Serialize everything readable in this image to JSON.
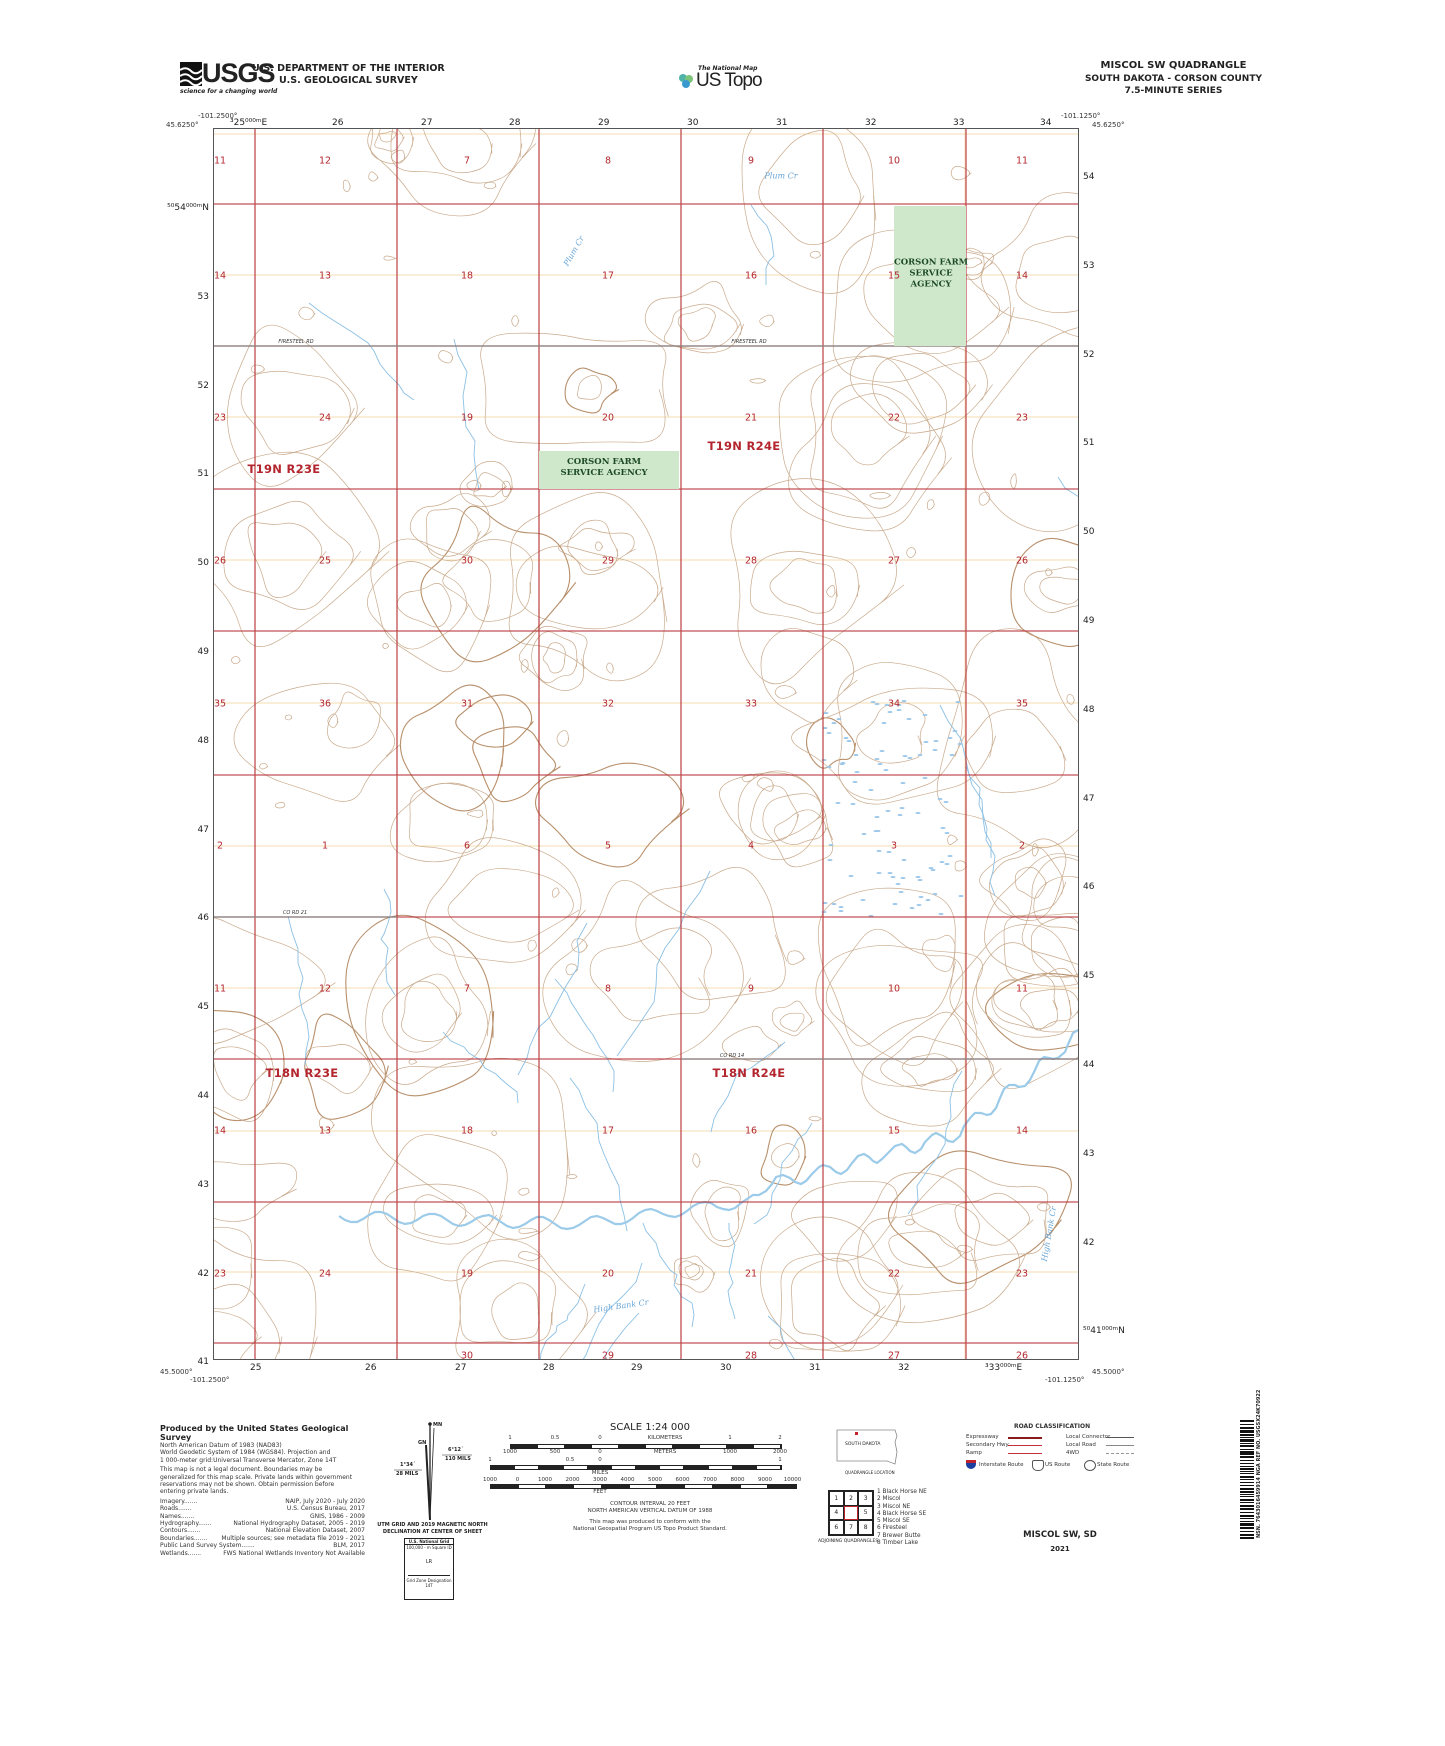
{
  "header": {
    "agency_logo": "USGS",
    "agency_tagline": "science for a changing world",
    "department": "U.S. DEPARTMENT OF THE INTERIOR",
    "survey": "U.S. GEOLOGICAL SURVEY",
    "program_small": "The National Map",
    "program": "US Topo",
    "quad_title": "MISCOL SW QUADRANGLE",
    "quad_state_county": "SOUTH DAKOTA - CORSON COUNTY",
    "quad_series": "7.5-MINUTE SERIES"
  },
  "colors": {
    "section_line": "#b3262f",
    "section_text": "#b3262f",
    "contour": "#c9aa8c",
    "water": "#8cc0e4",
    "plss_quarter": "#f0d39a",
    "public_land": "#cfe8cc",
    "road": "#8a8a8a"
  },
  "corners": {
    "top_left_lon": "-101.2500°",
    "top_left_lat": "45.6250°",
    "top_right_lon": "-101.1250°",
    "top_right_lat": "45.6250°",
    "bottom_left_lat": "45.5000°",
    "bottom_left_lon": "-101.2500°",
    "bottom_right_lat": "45.5000°",
    "bottom_right_lon": "-101.1250°"
  },
  "utm": {
    "top_eastings": [
      "³25⁰⁰⁰ᵐE",
      "26",
      "27",
      "28",
      "29",
      "30",
      "31",
      "32",
      "33",
      "34"
    ],
    "bottom_eastings": [
      "25",
      "26",
      "27",
      "28",
      "29",
      "30",
      "31",
      "32",
      "³33⁰⁰⁰ᵐE"
    ],
    "left_northings": [
      "⁵⁰54⁰⁰⁰ᵐN",
      "53",
      "52",
      "51",
      "50",
      "49",
      "48",
      "47",
      "46",
      "45",
      "44",
      "43",
      "42",
      "41"
    ],
    "right_northings": [
      "54",
      "53",
      "52",
      "51",
      "50",
      "49",
      "48",
      "47",
      "46",
      "45",
      "44",
      "43",
      "42",
      "⁵⁰41⁰⁰⁰ᵐN"
    ]
  },
  "sections": [
    [
      "11",
      "12",
      "7",
      "8",
      "9",
      "10",
      "11"
    ],
    [
      "14",
      "13",
      "18",
      "17",
      "16",
      "15",
      "14"
    ],
    [
      "23",
      "24",
      "19",
      "20",
      "21",
      "22",
      "23"
    ],
    [
      "26",
      "25",
      "30",
      "29",
      "28",
      "27",
      "26"
    ],
    [
      "35",
      "36",
      "31",
      "32",
      "33",
      "34",
      "35"
    ],
    [
      "2",
      "1",
      "6",
      "5",
      "4",
      "3",
      "2"
    ],
    [
      "11",
      "12",
      "7",
      "8",
      "9",
      "10",
      "11"
    ],
    [
      "14",
      "13",
      "18",
      "17",
      "16",
      "15",
      "14"
    ],
    [
      "23",
      "24",
      "19",
      "20",
      "21",
      "22",
      "23"
    ],
    [
      "",
      "",
      "30",
      "29",
      "28",
      "27",
      "26"
    ]
  ],
  "townships": [
    "T19N R23E",
    "T19N R24E",
    "T18N R23E",
    "T18N R24E"
  ],
  "public_lands": [
    {
      "name_lines": [
        "CORSON FARM",
        "SERVICE",
        "AGENCY"
      ]
    },
    {
      "name_lines": [
        "CORSON FARM",
        "SERVICE AGENCY"
      ]
    }
  ],
  "roads": [
    "FIRESTEEL RD",
    "FIRESTEEL RD",
    "CO RD 21",
    "CO RD 14"
  ],
  "streams": [
    "Plum Cr",
    "Plum Cr",
    "High Bank Cr",
    "High Bank Cr"
  ],
  "footer": {
    "produced_by": "Produced by the United States Geological Survey",
    "datum_lines": [
      "North American Datum of 1983 (NAD83)",
      "World Geodetic System of 1984 (WGS84). Projection and",
      "1 000-meter grid:Universal Transverse Mercator, Zone 14T"
    ],
    "legal_lines": [
      "This map is not a legal document. Boundaries may be",
      "generalized for this map scale. Private lands within government",
      "reservations may not be shown. Obtain permission before",
      "entering private lands."
    ],
    "credits": [
      {
        "label": "Imagery",
        "value": "NAIP, July 2020 - July 2020"
      },
      {
        "label": "Roads",
        "value": "U.S. Census Bureau, 2017"
      },
      {
        "label": "Names",
        "value": "GNIS, 1986 - 2009"
      },
      {
        "label": "Hydrography",
        "value": "National Hydrography Dataset, 2005 - 2019"
      },
      {
        "label": "Contours",
        "value": "National Elevation Dataset, 2007"
      },
      {
        "label": "Boundaries",
        "value": "Multiple sources; see metadata file 2019 - 2021"
      },
      {
        "label": "Public Land Survey System",
        "value": "BLM, 2017"
      },
      {
        "label": "Wetlands",
        "value": "FWS National Wetlands Inventory Not Available"
      }
    ],
    "declination": {
      "mn": "MN",
      "gn": "GN",
      "east_angle": "6°12´",
      "east_mils": "110 MILS",
      "west_angle": "1°34´",
      "west_mils": "28 MILS",
      "caption_1": "UTM GRID AND 2019 MAGNETIC NORTH",
      "caption_2": "DECLINATION AT CENTER OF SHEET"
    },
    "national_grid": {
      "title": "U.S. National Grid",
      "square_id_label": "100,000 - m Square ID",
      "square_id": "LR",
      "zone_label": "Grid Zone Designation",
      "zone": "14T"
    },
    "scale": {
      "title": "SCALE 1:24 000",
      "km_ticks": [
        "1",
        "0.5",
        "0",
        "KILOMETERS",
        "1",
        "2"
      ],
      "m_ticks": [
        "1000",
        "500",
        "0",
        "METERS",
        "1000",
        "2000"
      ],
      "mi_ticks": [
        "1",
        "0.5",
        "0",
        "1"
      ],
      "mi_label": "MILES",
      "ft_ticks": [
        "1000",
        "0",
        "1000",
        "2000",
        "3000",
        "4000",
        "5000",
        "6000",
        "7000",
        "8000",
        "9000",
        "10000"
      ],
      "ft_label": "FEET"
    },
    "contour_interval": "CONTOUR INTERVAL 20 FEET",
    "vertical_datum": "NORTH AMERICAN VERTICAL DATUM OF 1988",
    "standard_1": "This map was produced to conform with the",
    "standard_2": "National Geospatial Program US Topo Product Standard.",
    "location_state": "SOUTH DAKOTA",
    "location_caption": "QUADRANGLE LOCATION",
    "adjoining_cells": [
      "1",
      "2",
      "3",
      "4",
      "",
      "5",
      "6",
      "7",
      "8"
    ],
    "adjoining_list": [
      "1 Black Horse NE",
      "2 Miscol",
      "3 Miscol NE",
      "4 Black Horse SE",
      "5 Miscol SE",
      "6 Firesteel",
      "7 Brewer Butte",
      "8 Timber Lake"
    ],
    "adjoining_caption": "ADJOINING QUADRANGLES",
    "road_class_title": "ROAD CLASSIFICATION",
    "road_classes_left": [
      "Expressway",
      "Secondary Hwy",
      "Ramp"
    ],
    "road_classes_right": [
      "Local Connector",
      "Local Road",
      "4WD"
    ],
    "route_types": [
      "Interstate Route",
      "US Route",
      "State Route"
    ],
    "sheet_name": "MISCOL SW, SD",
    "sheet_year": "2021",
    "barcode_text": "NSN. 7643016459914 NGA REF NO. USGSX24K70922"
  }
}
